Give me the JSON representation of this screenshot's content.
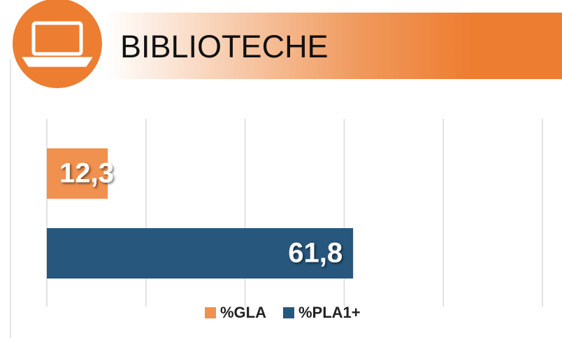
{
  "chart_data": {
    "type": "barh",
    "title": "BIBLIOTECHE",
    "categories": [
      null
    ],
    "series": [
      {
        "name": "%GLA",
        "color": "#f0914f",
        "values": [
          12.3
        ],
        "value_labels": [
          "12,3"
        ]
      },
      {
        "name": "%PLA1+",
        "color": "#27577c",
        "values": [
          61.8
        ],
        "value_labels": [
          "61,8"
        ]
      }
    ],
    "xlim": [
      0,
      100
    ],
    "xticks": [
      0,
      20,
      40,
      60,
      80,
      100
    ],
    "grid": true,
    "legend": "bottom"
  }
}
